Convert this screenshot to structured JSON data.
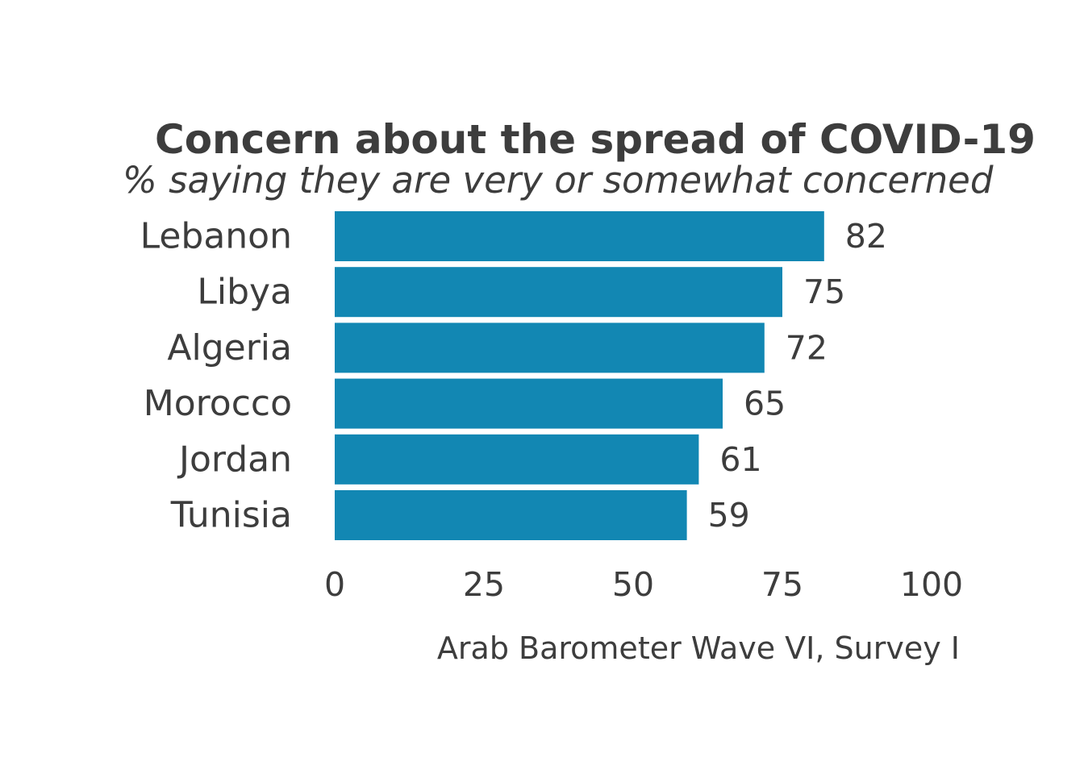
{
  "chart_data": {
    "type": "bar",
    "orientation": "horizontal",
    "title": "Concern about the spread of COVID-19",
    "subtitle": "% saying they are very or somewhat concerned",
    "categories": [
      "Lebanon",
      "Libya",
      "Algeria",
      "Morocco",
      "Jordan",
      "Tunisia"
    ],
    "values": [
      82,
      75,
      72,
      65,
      61,
      59
    ],
    "xlim": [
      0,
      100
    ],
    "xticks": [
      0,
      25,
      50,
      75,
      100
    ],
    "caption": "Arab Barometer Wave VI, Survey I",
    "grid": false,
    "bar_color": "#1287b3",
    "text_color": "#3d3d3d"
  }
}
